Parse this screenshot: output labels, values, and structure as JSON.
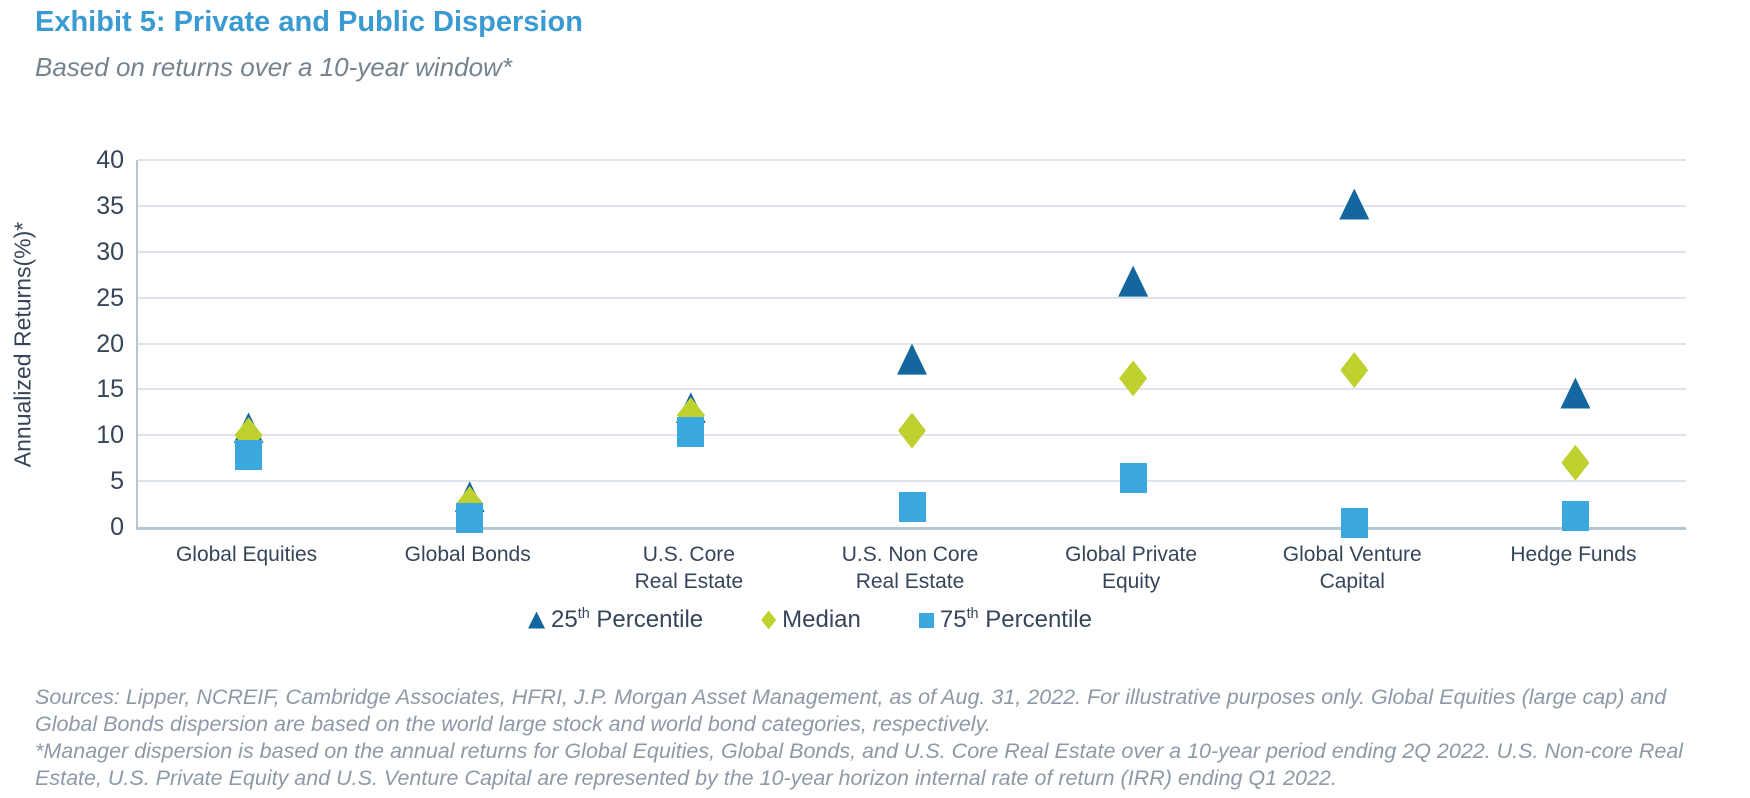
{
  "header": {
    "title": "Exhibit 5: Private and Public Dispersion",
    "subtitle": "Based on returns over a 10-year window*"
  },
  "chart_data": {
    "type": "scatter",
    "title": "Exhibit 5: Private and Public Dispersion",
    "subtitle": "Based on returns over a 10-year window*",
    "ylabel": "Annualized Returns(%)*",
    "xlabel": "",
    "ylim": [
      0,
      40
    ],
    "yticks": [
      0,
      5,
      10,
      15,
      20,
      25,
      30,
      35,
      40
    ],
    "grid": true,
    "legend_position": "bottom-center",
    "categories": [
      "Global Equities",
      "Global Bonds",
      "U.S. Core\nReal Estate",
      "U.S. Non Core\nReal Estate",
      "Global Private\nEquity",
      "Global Venture\nCapital",
      "Hedge Funds"
    ],
    "series": [
      {
        "name": "25th Percentile",
        "marker": "triangle",
        "color": "#13679e",
        "values": [
          10.8,
          3.3,
          13.0,
          18.3,
          26.8,
          35.2,
          14.6
        ]
      },
      {
        "name": "Median",
        "marker": "diamond",
        "color": "#bed12e",
        "values": [
          10.0,
          2.5,
          12.2,
          10.5,
          16.2,
          17.1,
          7.0
        ]
      },
      {
        "name": "75th Percentile",
        "marker": "square",
        "color": "#3aa8de",
        "values": [
          7.8,
          1.0,
          10.3,
          2.2,
          5.3,
          0.4,
          1.2
        ]
      }
    ]
  },
  "legend": {
    "items": [
      {
        "pre": "25",
        "sup": "th",
        "post": " Percentile",
        "marker": "triangle",
        "color": "#13679e"
      },
      {
        "pre": "Median",
        "sup": "",
        "post": "",
        "marker": "diamond",
        "color": "#bed12e"
      },
      {
        "pre": "75",
        "sup": "th",
        "post": " Percentile",
        "marker": "square",
        "color": "#3aa8de"
      }
    ]
  },
  "footnotes": {
    "sources": "Sources: Lipper, NCREIF, Cambridge Associates, HFRI, J.P. Morgan Asset Management, as of Aug. 31, 2022. For illustrative purposes only. Global Equities (large cap) and Global Bonds dispersion are based on the world large stock and world bond categories, respectively.",
    "note": "*Manager dispersion is based on the annual returns for Global Equities, Global Bonds, and U.S. Core Real Estate over a 10-year period ending 2Q 2022. U.S. Non-core Real Estate, U.S. Private Equity and U.S. Venture Capital are represented by the 10-year horizon internal rate of return (IRR) ending Q1 2022."
  }
}
